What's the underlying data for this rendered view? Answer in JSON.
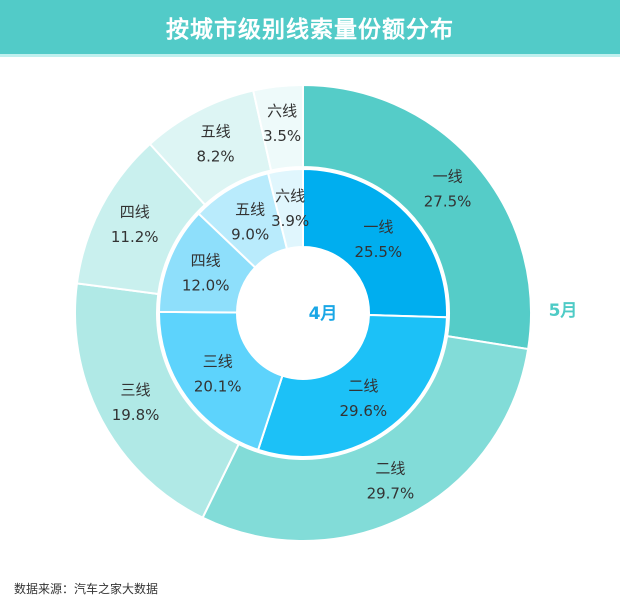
{
  "chart_data": {
    "type": "pie",
    "title": "按城市级别线索量份额分布",
    "rings": [
      {
        "name": "4月",
        "position": "inner",
        "categories": [
          "一线",
          "二线",
          "三线",
          "四线",
          "五线",
          "六线"
        ],
        "values": [
          25.5,
          29.6,
          20.1,
          12.0,
          9.0,
          3.9
        ],
        "labels": [
          "25.5%",
          "29.6%",
          "20.1%",
          "12.0%",
          "9.0%",
          "3.9%"
        ],
        "colors": [
          "#00aeef",
          "#1cc1f7",
          "#5dd3fc",
          "#8edffb",
          "#b9ebfc",
          "#e0f6fd"
        ],
        "label_color": "#1aa7e6"
      },
      {
        "name": "5月",
        "position": "outer",
        "categories": [
          "一线",
          "二线",
          "三线",
          "四线",
          "五线",
          "六线"
        ],
        "values": [
          27.5,
          29.7,
          19.8,
          11.2,
          8.2,
          3.5
        ],
        "labels": [
          "27.5%",
          "29.7%",
          "19.8%",
          "11.2%",
          "8.2%",
          "3.5%"
        ],
        "colors": [
          "#55ccc8",
          "#82dcd8",
          "#b0e9e6",
          "#c9f0ee",
          "#ddf5f4",
          "#eefafa"
        ],
        "label_color": "#4ecbc6"
      }
    ]
  },
  "source": "数据来源：汽车之家大数据"
}
